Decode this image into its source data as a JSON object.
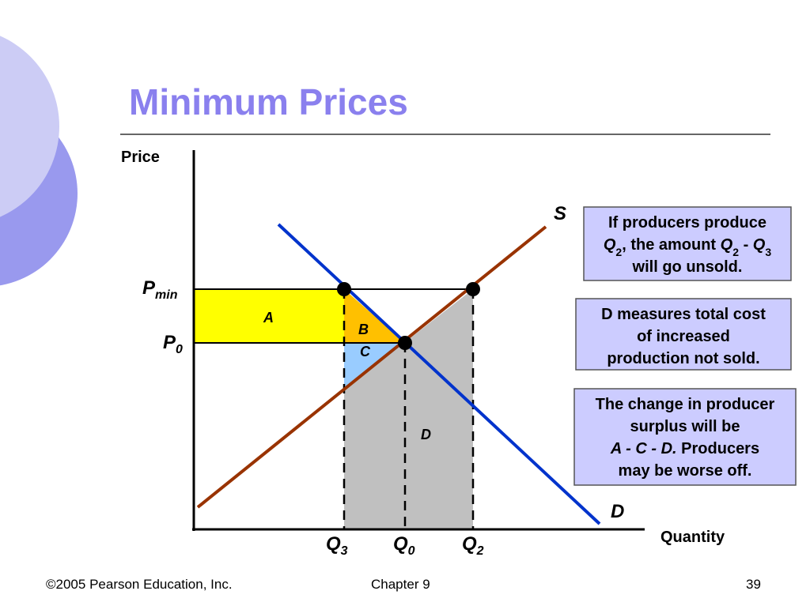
{
  "title": "Minimum Prices",
  "axes": {
    "y_label": "Price",
    "x_label": "Quantity"
  },
  "curves": {
    "supply": "S",
    "demand": "D"
  },
  "price_labels": [
    {
      "main": "P",
      "sub": "min"
    },
    {
      "main": "P",
      "sub": "0"
    }
  ],
  "quantity_labels": [
    {
      "main": "Q",
      "sub": "3"
    },
    {
      "main": "Q",
      "sub": "0"
    },
    {
      "main": "Q",
      "sub": "2"
    }
  ],
  "areas": [
    "A",
    "B",
    "C",
    "D"
  ],
  "notes": [
    {
      "lines": [
        [
          {
            "text": "If producers produce"
          }
        ],
        [
          {
            "text": "Q",
            "italic": true
          },
          {
            "text": "2",
            "sub": true
          },
          {
            "text": ", the amount "
          },
          {
            "text": "Q",
            "italic": true
          },
          {
            "text": "2",
            "sub": true
          },
          {
            "text": " - "
          },
          {
            "text": "Q",
            "italic": true
          },
          {
            "text": "3",
            "sub": true
          }
        ],
        [
          {
            "text": "will go unsold."
          }
        ]
      ]
    },
    {
      "lines": [
        [
          {
            "text": "D measures total cost"
          }
        ],
        [
          {
            "text": "of increased"
          }
        ],
        [
          {
            "text": "production not sold."
          }
        ]
      ]
    },
    {
      "lines": [
        [
          {
            "text": "The change in producer"
          }
        ],
        [
          {
            "text": "surplus will be"
          }
        ],
        [
          {
            "text": "A - C - D.",
            "italic": true
          },
          {
            "text": " Producers"
          }
        ],
        [
          {
            "text": "may be worse off."
          }
        ]
      ]
    }
  ],
  "footer": {
    "copyright": "©2005 Pearson Education, Inc.",
    "chapter": "Chapter 9",
    "page": "39"
  }
}
